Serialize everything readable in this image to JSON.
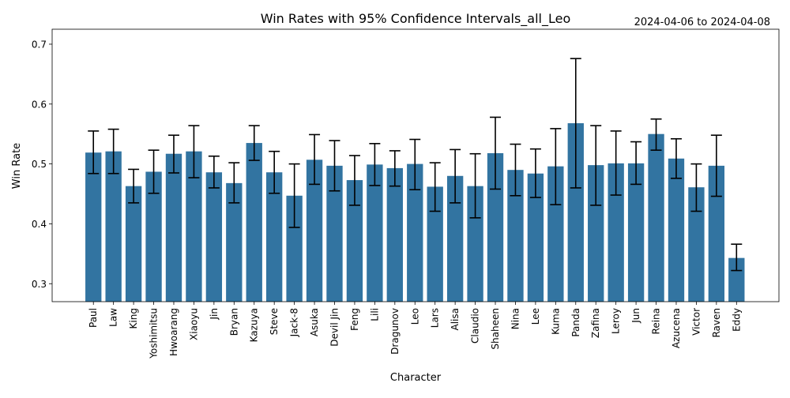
{
  "chart_data": {
    "type": "bar",
    "title": "Win Rates with 95% Confidence Intervals_all_Leo",
    "subtitle": "2024-04-06 to 2024-04-08",
    "xlabel": "Character",
    "ylabel": "Win Rate",
    "ylim": [
      0.27,
      0.725
    ],
    "yticks": [
      "0.3",
      "0.4",
      "0.5",
      "0.6",
      "0.7"
    ],
    "bar_color": "#3274a1",
    "grid": false,
    "categories": [
      "Paul",
      "Law",
      "King",
      "Yoshimitsu",
      "Hwoarang",
      "Xiaoyu",
      "Jin",
      "Bryan",
      "Kazuya",
      "Steve",
      "Jack-8",
      "Asuka",
      "Devil Jin",
      "Feng",
      "Lili",
      "Dragunov",
      "Leo",
      "Lars",
      "Alisa",
      "Claudio",
      "Shaheen",
      "Nina",
      "Lee",
      "Kuma",
      "Panda",
      "Zafina",
      "Leroy",
      "Jun",
      "Reina",
      "Azucena",
      "Victor",
      "Raven",
      "Eddy"
    ],
    "values": [
      0.519,
      0.521,
      0.463,
      0.487,
      0.517,
      0.521,
      0.486,
      0.468,
      0.535,
      0.486,
      0.447,
      0.507,
      0.497,
      0.473,
      0.499,
      0.493,
      0.5,
      0.462,
      0.48,
      0.463,
      0.518,
      0.49,
      0.484,
      0.496,
      0.568,
      0.498,
      0.501,
      0.501,
      0.55,
      0.509,
      0.461,
      0.497,
      0.343
    ],
    "ci_low": [
      0.484,
      0.484,
      0.435,
      0.451,
      0.485,
      0.477,
      0.46,
      0.435,
      0.506,
      0.451,
      0.394,
      0.466,
      0.455,
      0.431,
      0.464,
      0.463,
      0.457,
      0.421,
      0.435,
      0.41,
      0.458,
      0.447,
      0.444,
      0.432,
      0.46,
      0.431,
      0.448,
      0.466,
      0.523,
      0.476,
      0.421,
      0.446,
      0.322
    ],
    "ci_high": [
      0.555,
      0.558,
      0.491,
      0.523,
      0.548,
      0.564,
      0.513,
      0.502,
      0.564,
      0.521,
      0.5,
      0.549,
      0.539,
      0.514,
      0.534,
      0.522,
      0.541,
      0.502,
      0.524,
      0.517,
      0.578,
      0.533,
      0.525,
      0.559,
      0.676,
      0.564,
      0.555,
      0.537,
      0.575,
      0.542,
      0.5,
      0.548,
      0.366
    ]
  }
}
